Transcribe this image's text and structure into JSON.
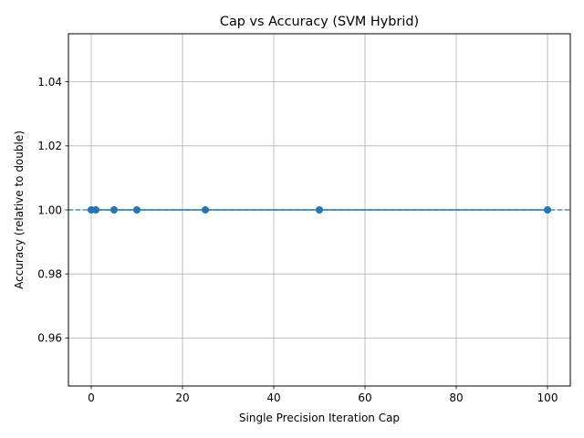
{
  "chart_data": {
    "type": "line",
    "title": "Cap vs Accuracy (SVM Hybrid)",
    "xlabel": "Single Precision Iteration Cap",
    "ylabel": "Accuracy (relative to double)",
    "xlim": [
      -5,
      105
    ],
    "ylim": [
      0.945,
      1.055
    ],
    "xticks": [
      0,
      20,
      40,
      60,
      80,
      100
    ],
    "yticks": [
      0.96,
      0.98,
      1.0,
      1.02,
      1.04
    ],
    "xtick_labels": [
      "0",
      "20",
      "40",
      "60",
      "80",
      "100"
    ],
    "ytick_labels": [
      "0.96",
      "0.98",
      "1.00",
      "1.02",
      "1.04"
    ],
    "grid": true,
    "series": [
      {
        "x": [
          0,
          1,
          5,
          10,
          25,
          50,
          100
        ],
        "y": [
          1.0,
          1.0,
          1.0,
          1.0,
          1.0,
          1.0,
          1.0
        ],
        "color": "#1f77b4",
        "marker": "circle"
      }
    ],
    "reference_line": {
      "y": 1.0,
      "style": "dashed",
      "color": "#1f77b4"
    }
  }
}
